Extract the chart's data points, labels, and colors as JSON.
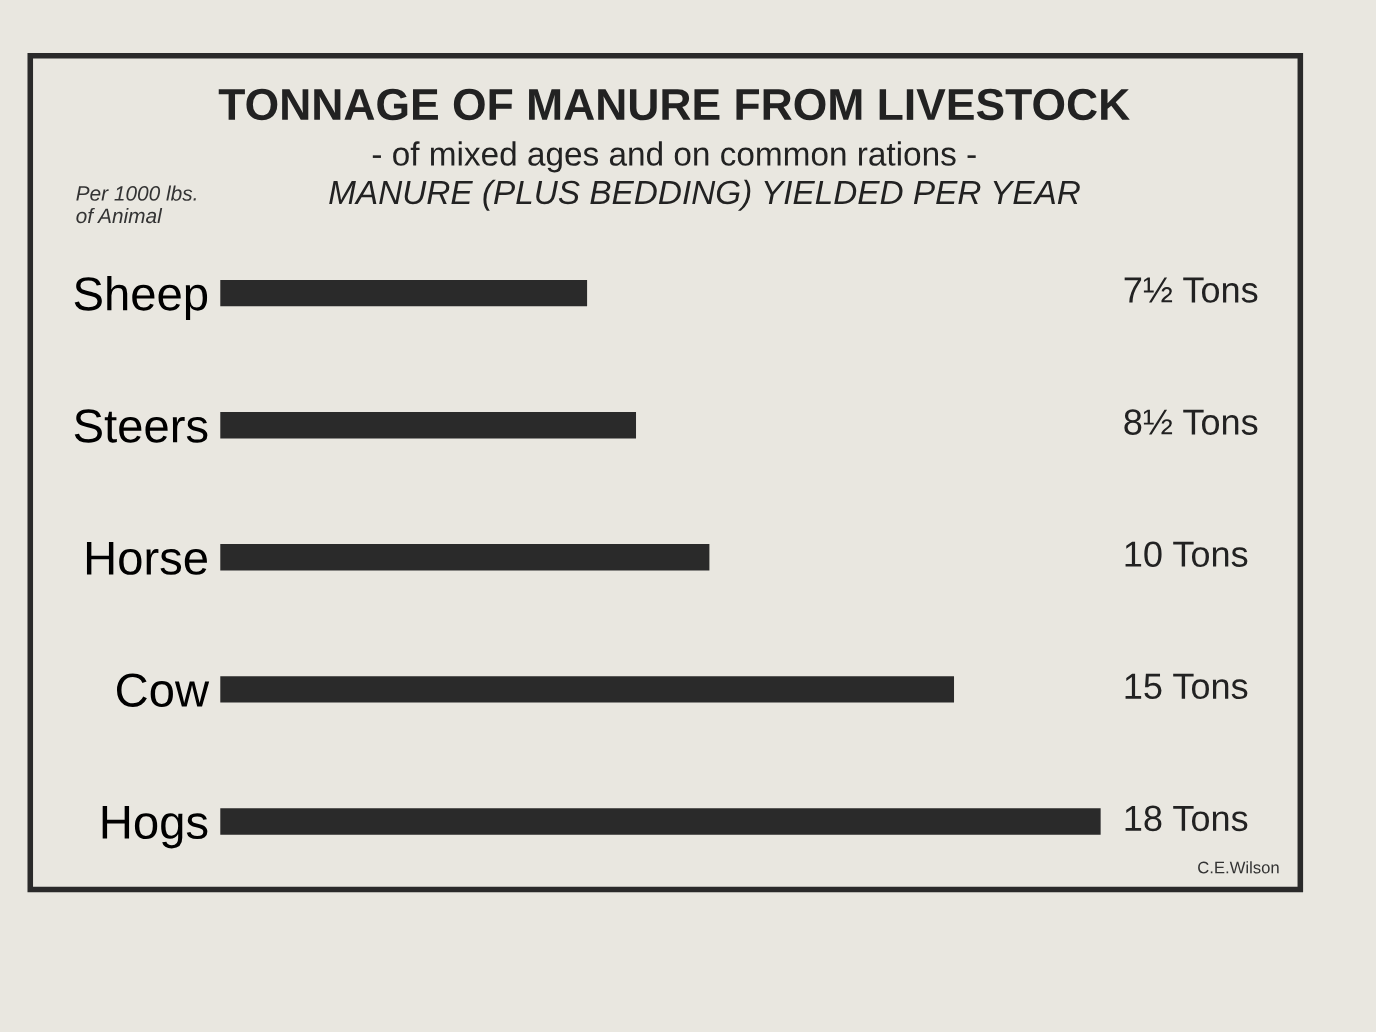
{
  "chart_data": {
    "type": "bar",
    "orientation": "horizontal",
    "title": "TONNAGE OF MANURE FROM LIVESTOCK",
    "subtitle": "- of mixed ages and on common rations -",
    "xlabel": "MANURE (PLUS BEDDING) YIELDED PER YEAR",
    "categories": [
      "Sheep",
      "Steers",
      "Horse",
      "Cow",
      "Hogs"
    ],
    "values": [
      7.5,
      8.5,
      10,
      15,
      18
    ],
    "value_labels": [
      "7½ Tons",
      "8½ Tons",
      "10 Tons",
      "15 Tons",
      "18 Tons"
    ],
    "color": "#2a2a2a",
    "annotations": [
      "Per 1000 lbs.\nof Animal",
      "C.E.Wilson"
    ],
    "tick_labels": "y"
  }
}
